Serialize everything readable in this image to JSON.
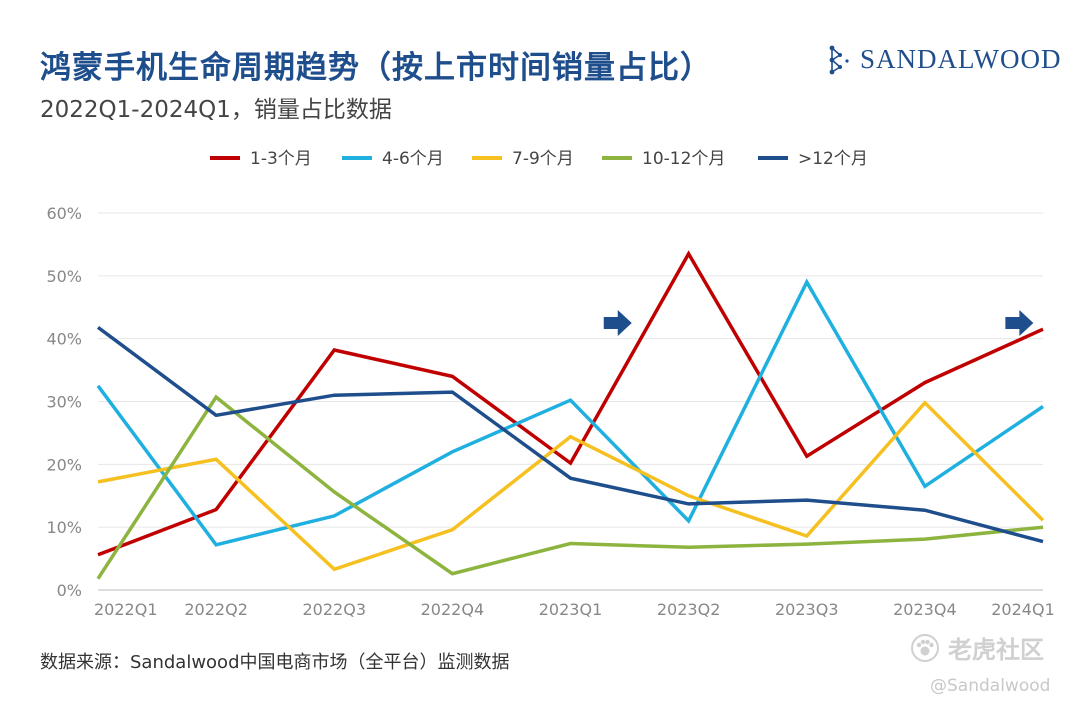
{
  "header": {
    "title": "鸿蒙手机生命周期趋势（按上市时间销量占比）",
    "subtitle": "2022Q1-2024Q1，销量占比数据",
    "logo_text": "SANDALWOOD"
  },
  "footer": {
    "source": "数据来源：Sandalwood中国电商市场（全平台）监测数据",
    "watermark": "老虎社区",
    "watermark_handle": "@Sandalwood"
  },
  "chart_data": {
    "type": "line",
    "title": "鸿蒙手机生命周期趋势（按上市时间销量占比）",
    "subtitle": "2022Q1-2024Q1，销量占比数据",
    "categories": [
      "2022Q1",
      "2022Q2",
      "2022Q3",
      "2022Q4",
      "2023Q1",
      "2023Q2",
      "2023Q3",
      "2023Q4",
      "2024Q1"
    ],
    "ylim": [
      0,
      60
    ],
    "yticks": [
      "0%",
      "10%",
      "20%",
      "30%",
      "40%",
      "50%",
      "60%"
    ],
    "ytick_values": [
      0,
      10,
      20,
      30,
      40,
      50,
      60
    ],
    "grid": true,
    "legend_position": "top",
    "series": [
      {
        "name": "1-3个月",
        "color": "#c00000",
        "values": [
          5.6,
          12.8,
          38.2,
          34.0,
          20.2,
          53.5,
          21.3,
          33.0,
          41.5
        ]
      },
      {
        "name": "4-6个月",
        "color": "#1fb0e0",
        "values": [
          32.5,
          7.2,
          11.8,
          22.0,
          30.2,
          11.0,
          49.0,
          16.5,
          29.2
        ]
      },
      {
        "name": "7-9个月",
        "color": "#f5c020",
        "values": [
          17.2,
          20.8,
          3.3,
          9.6,
          24.4,
          15.0,
          8.6,
          29.8,
          11.1
        ]
      },
      {
        "name": "10-12个月",
        "color": "#8db43f",
        "values": [
          1.8,
          30.7,
          15.6,
          2.6,
          7.4,
          6.8,
          7.3,
          8.1,
          10.0
        ]
      },
      {
        "name": ">12个月",
        "color": "#1f4e8c",
        "values": [
          41.8,
          27.8,
          31.0,
          31.5,
          17.8,
          13.7,
          14.3,
          12.7,
          7.7
        ]
      }
    ],
    "annotations": [
      {
        "type": "arrow",
        "color": "#1f4e8c",
        "x": 4.4,
        "y": 42.5
      },
      {
        "type": "arrow",
        "color": "#1f4e8c",
        "x": 7.8,
        "y": 42.5
      }
    ]
  }
}
